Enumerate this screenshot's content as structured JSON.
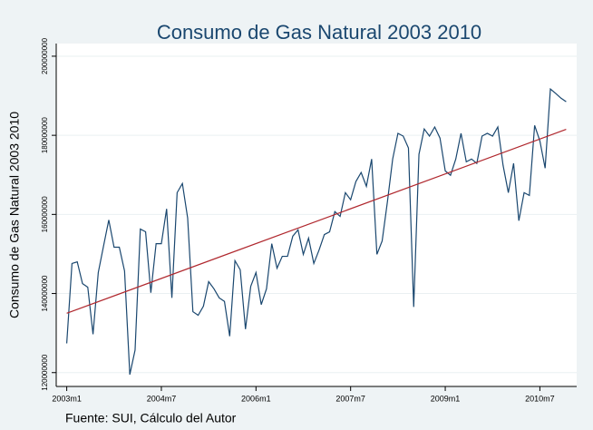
{
  "chart_data": {
    "type": "line",
    "title": "Consumo de Gas Natural 2003 2010",
    "ylabel": "Consumo de Gas Natural 2003 2010",
    "note": "Fuente: SUI, Cálculo del Autor",
    "x": [
      516,
      517,
      518,
      519,
      520,
      521,
      522,
      523,
      524,
      525,
      526,
      527,
      528,
      529,
      530,
      531,
      532,
      533,
      534,
      535,
      536,
      537,
      538,
      539,
      540,
      541,
      542,
      543,
      544,
      545,
      546,
      547,
      548,
      549,
      550,
      551,
      552,
      553,
      554,
      555,
      556,
      557,
      558,
      559,
      560,
      561,
      562,
      563,
      564,
      565,
      566,
      567,
      568,
      569,
      570,
      571,
      572,
      573,
      574,
      575,
      576,
      577,
      578,
      579,
      580,
      581,
      582,
      583,
      584,
      585,
      586,
      587,
      588,
      589,
      590,
      591,
      592,
      593,
      594,
      595,
      596,
      597,
      598,
      599,
      600,
      601,
      602,
      603,
      604,
      605,
      606,
      607,
      608,
      609,
      610,
      611
    ],
    "values": [
      127400000,
      147600000,
      148000000,
      142500000,
      141600000,
      129700000,
      145300000,
      152000000,
      158600000,
      151700000,
      151700000,
      145700000,
      119500000,
      125700000,
      156300000,
      155600000,
      140200000,
      152600000,
      152600000,
      161400000,
      138900000,
      165500000,
      167800000,
      159100000,
      135400000,
      134500000,
      136800000,
      143000000,
      141200000,
      138900000,
      138000000,
      129200000,
      148300000,
      146000000,
      131000000,
      141800000,
      145300000,
      137200000,
      141200000,
      152600000,
      146400000,
      149400000,
      149400000,
      154500000,
      156100000,
      149900000,
      154000000,
      147600000,
      151000000,
      154900000,
      155600000,
      160700000,
      159500000,
      165500000,
      163700000,
      168300000,
      170600000,
      167100000,
      174000000,
      149900000,
      153300000,
      163200000,
      174000000,
      180500000,
      179800000,
      176800000,
      136600000,
      175200000,
      181600000,
      179800000,
      182100000,
      179300000,
      171000000,
      169900000,
      174000000,
      180500000,
      173300000,
      174000000,
      172900000,
      179800000,
      180500000,
      179800000,
      182100000,
      172400000,
      165500000,
      172900000,
      158400000,
      165500000,
      164800000,
      182500000,
      178600000,
      171700000,
      191700000,
      190600000,
      189400000,
      188500000
    ],
    "color": "#1a476f",
    "trend": {
      "x": [
        516,
        611
      ],
      "values": [
        135000000,
        181500000
      ],
      "color": "#b0282e"
    },
    "xlim": [
      514,
      613
    ],
    "ylim": [
      116500000,
      203200000
    ],
    "xticks": [
      {
        "value": 516,
        "label": "2003m1"
      },
      {
        "value": 534,
        "label": "2004m7"
      },
      {
        "value": 552,
        "label": "2006m1"
      },
      {
        "value": 570,
        "label": "2007m7"
      },
      {
        "value": 588,
        "label": "2009m1"
      },
      {
        "value": 606,
        "label": "2010m7"
      }
    ],
    "yticks": [
      120000000,
      140000000,
      160000000,
      180000000,
      200000000
    ],
    "grid": true
  }
}
